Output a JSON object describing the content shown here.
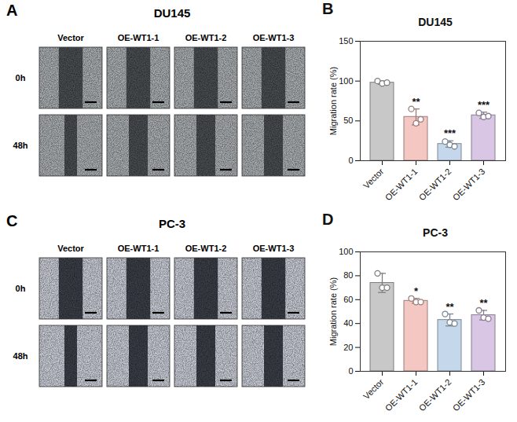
{
  "panels": [
    {
      "panel_label": "A",
      "type": "image_grid",
      "title": "DU145",
      "columns": [
        "Vector",
        "OE-WT1-1",
        "OE-WT1-2",
        "OE-WT1-3"
      ],
      "rows": [
        "0h",
        "48h"
      ]
    },
    {
      "panel_label": "C",
      "type": "image_grid",
      "title": "PC-3",
      "columns": [
        "Vector",
        "OE-WT1-1",
        "OE-WT1-2",
        "OE-WT1-3"
      ],
      "rows": [
        "0h",
        "48h"
      ]
    }
  ],
  "chart_data": [
    {
      "panel_label": "B",
      "type": "bar",
      "title": "DU145",
      "y_label": "Migration rate (%)",
      "categories": [
        "Vector",
        "OE-WT1-1",
        "OE-WT1-2",
        "OE-WT1-3"
      ],
      "values": [
        98,
        55,
        21,
        57
      ],
      "errors": [
        2,
        10,
        4,
        4
      ],
      "points": [
        [
          100,
          97,
          98
        ],
        [
          65,
          47,
          52
        ],
        [
          24,
          20,
          18
        ],
        [
          60,
          55,
          56
        ]
      ],
      "annotations": [
        null,
        "**",
        "***",
        "***"
      ],
      "colors": [
        "#c8c8c8",
        "#f4c7c3",
        "#c5d7ea",
        "#d9c6e5"
      ],
      "ylim": [
        0,
        150
      ],
      "yticks": [
        0,
        50,
        100,
        150
      ],
      "grid": false,
      "data_labels": false
    },
    {
      "panel_label": "D",
      "type": "bar",
      "title": "PC-3",
      "y_label": "Migration rate (%)",
      "categories": [
        "Vector",
        "OE-WT1-1",
        "OE-WT1-2",
        "OE-WT1-3"
      ],
      "values": [
        74,
        59,
        43,
        47
      ],
      "errors": [
        8,
        2,
        5,
        4
      ],
      "points": [
        [
          82,
          70,
          70
        ],
        [
          61,
          58,
          58
        ],
        [
          48,
          41,
          40
        ],
        [
          51,
          45,
          44
        ]
      ],
      "annotations": [
        null,
        "*",
        "**",
        "**"
      ],
      "colors": [
        "#c8c8c8",
        "#f4c7c3",
        "#c5d7ea",
        "#d9c6e5"
      ],
      "ylim": [
        0,
        100
      ],
      "yticks": [
        0,
        20,
        40,
        60,
        80,
        100
      ],
      "grid": false,
      "data_labels": false
    }
  ]
}
